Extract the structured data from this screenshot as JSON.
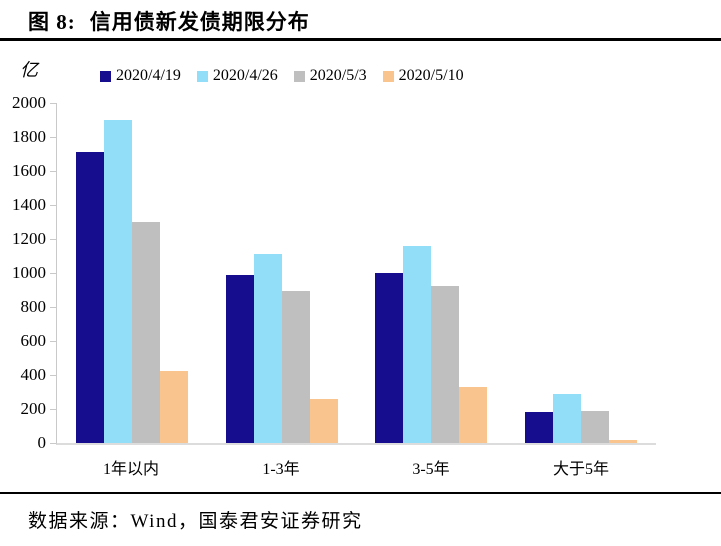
{
  "header": {
    "figure_label": "图 8:",
    "figure_title": "信用债新发债期限分布"
  },
  "chart_data": {
    "type": "bar",
    "title": "信用债新发债期限分布",
    "unit_label": "亿",
    "categories": [
      "1年以内",
      "1-3年",
      "3-5年",
      "大于5年"
    ],
    "series": [
      {
        "name": "2020/4/19",
        "color": "#150D8E",
        "values": [
          1710,
          990,
          1000,
          180
        ]
      },
      {
        "name": "2020/4/26",
        "color": "#92DEF8",
        "values": [
          1900,
          1110,
          1160,
          290
        ]
      },
      {
        "name": "2020/5/3",
        "color": "#BFBFBF",
        "values": [
          1300,
          895,
          925,
          190
        ]
      },
      {
        "name": "2020/5/10",
        "color": "#FAC48F",
        "values": [
          425,
          260,
          330,
          20
        ]
      }
    ],
    "ylim": [
      0,
      2000
    ],
    "ytick_step": 200,
    "grid": false,
    "legend_position": "top"
  },
  "footer": {
    "source": "数据来源：Wind，国泰君安证券研究"
  },
  "colors": {
    "axis_line": "#C9C9C9",
    "baseline": "#DCDCDC",
    "rule": "#000000",
    "text": "#000000"
  }
}
